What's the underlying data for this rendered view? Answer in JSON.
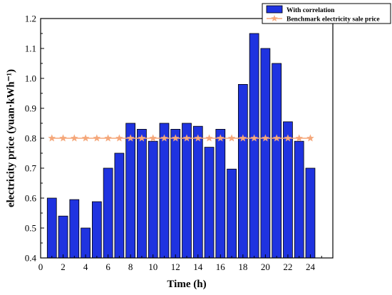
{
  "chart_data": {
    "type": "bar",
    "x": [
      1,
      2,
      3,
      4,
      5,
      6,
      7,
      8,
      9,
      10,
      11,
      12,
      13,
      14,
      15,
      16,
      17,
      18,
      19,
      20,
      21,
      22,
      23,
      24
    ],
    "series": [
      {
        "name": "With correlation",
        "type": "bar",
        "color": "#1f33e0",
        "values": [
          0.6,
          0.54,
          0.595,
          0.5,
          0.588,
          0.7,
          0.75,
          0.85,
          0.83,
          0.79,
          0.85,
          0.83,
          0.85,
          0.84,
          0.77,
          0.83,
          0.697,
          0.98,
          1.15,
          1.1,
          1.05,
          0.855,
          0.79,
          0.7
        ]
      },
      {
        "name": "Benchmark electricity sale price",
        "type": "line",
        "marker": "star",
        "color": "#f5a77a",
        "values": [
          0.8,
          0.8,
          0.8,
          0.8,
          0.8,
          0.8,
          0.8,
          0.8,
          0.8,
          0.8,
          0.8,
          0.8,
          0.8,
          0.8,
          0.8,
          0.8,
          0.8,
          0.8,
          0.8,
          0.8,
          0.8,
          0.8,
          0.8,
          0.8
        ]
      }
    ],
    "xlabel": "Time (h)",
    "ylabel": "electricity price (yuan·kWh⁻¹)",
    "xlim": [
      0,
      26
    ],
    "ylim": [
      0.4,
      1.2
    ],
    "xticks": [
      0,
      2,
      4,
      6,
      8,
      10,
      12,
      14,
      16,
      18,
      20,
      22,
      24
    ],
    "yticks": [
      0.4,
      0.5,
      0.6,
      0.7,
      0.8,
      0.9,
      1.0,
      1.1,
      1.2
    ],
    "ytick_labels": [
      "0.4",
      "0.5",
      "0.6",
      "0.7",
      "0.8",
      "0.9",
      "1.0",
      "1.1",
      "1.2"
    ],
    "legend_position": "top-right",
    "grid": false
  }
}
